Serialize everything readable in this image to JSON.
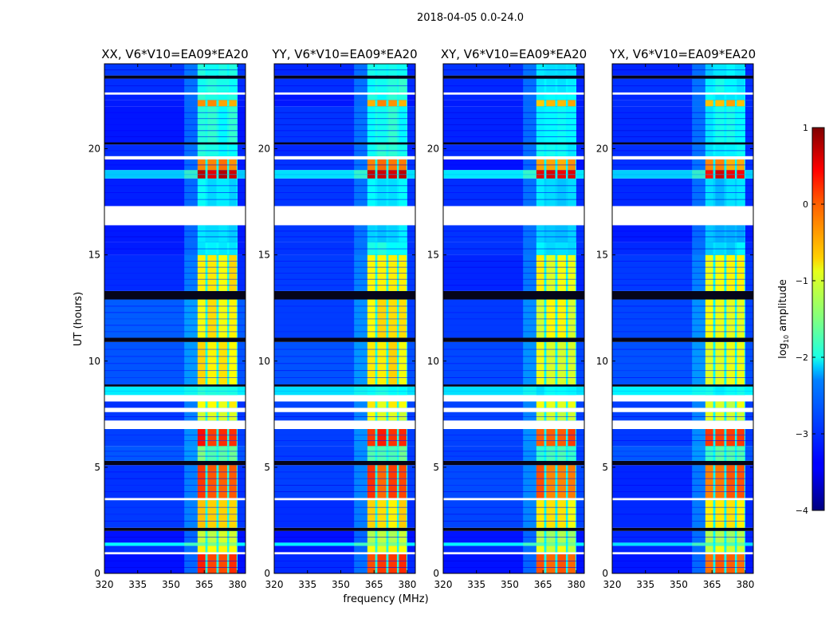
{
  "chart_data": {
    "type": "heatmap",
    "title": "2018-04-05 0.0-24.0",
    "xlabel": "frequency (MHz)",
    "ylabel": "UT (hours)",
    "xlim": [
      320,
      383.6
    ],
    "ylim": [
      0,
      24
    ],
    "xticks": [
      320,
      335,
      350,
      365,
      380
    ],
    "yticks": [
      0,
      5,
      10,
      15,
      20
    ],
    "panels": [
      {
        "title": "XX, V6*V10=EA09*EA20"
      },
      {
        "title": "YY, V6*V10=EA09*EA20"
      },
      {
        "title": "XY, V6*V10=EA09*EA20"
      },
      {
        "title": "YX, V6*V10=EA09*EA20"
      }
    ],
    "colorbar": {
      "label_prefix": "log",
      "label_sub": "10",
      "label_suffix": " amplitude",
      "colormap": "jet",
      "range": [
        -4,
        1
      ],
      "ticks": [
        1,
        0,
        -1,
        -2,
        -3,
        -4
      ]
    },
    "rfi_subbands_mhz": [
      [
        362,
        365.5
      ],
      [
        366.5,
        370.5
      ],
      [
        371.5,
        375.3
      ],
      [
        376.2,
        379.6
      ]
    ],
    "time_segments": [
      {
        "t0": 0.0,
        "t1": 0.9,
        "state": "data",
        "bg": -3.2,
        "rfi": 0.1
      },
      {
        "t0": 0.9,
        "t1": 1.0,
        "state": "flag"
      },
      {
        "t0": 1.0,
        "t1": 1.3,
        "state": "data",
        "bg": -3.2,
        "rfi": -0.9
      },
      {
        "t0": 1.3,
        "t1": 1.45,
        "state": "data",
        "bg": -2.2,
        "rfi": -1.5
      },
      {
        "t0": 1.45,
        "t1": 2.0,
        "state": "data",
        "bg": -3.2,
        "rfi": -1.2
      },
      {
        "t0": 2.0,
        "t1": 2.15,
        "state": "gap"
      },
      {
        "t0": 2.15,
        "t1": 3.45,
        "state": "data",
        "bg": -3.1,
        "rfi": -0.7
      },
      {
        "t0": 3.45,
        "t1": 3.55,
        "state": "flag"
      },
      {
        "t0": 3.55,
        "t1": 5.1,
        "state": "data",
        "bg": -3.1,
        "rfi": 0.0
      },
      {
        "t0": 5.1,
        "t1": 5.3,
        "state": "gap"
      },
      {
        "t0": 5.3,
        "t1": 6.0,
        "state": "data",
        "bg": -3.0,
        "rfi": -1.6
      },
      {
        "t0": 6.0,
        "t1": 6.8,
        "state": "data",
        "bg": -3.0,
        "rfi": 0.2
      },
      {
        "t0": 6.8,
        "t1": 7.2,
        "state": "flag"
      },
      {
        "t0": 7.2,
        "t1": 7.6,
        "state": "data",
        "bg": -3.1,
        "rfi": -1.0
      },
      {
        "t0": 7.6,
        "t1": 7.8,
        "state": "flag"
      },
      {
        "t0": 7.8,
        "t1": 8.1,
        "state": "data",
        "bg": -3.1,
        "rfi": -0.9
      },
      {
        "t0": 8.1,
        "t1": 8.4,
        "state": "flag"
      },
      {
        "t0": 8.4,
        "t1": 8.8,
        "state": "data",
        "bg": -2.2,
        "rfi": -2.0
      },
      {
        "t0": 8.8,
        "t1": 8.9,
        "state": "gap"
      },
      {
        "t0": 8.9,
        "t1": 10.9,
        "state": "data",
        "bg": -3.0,
        "rfi": -0.8
      },
      {
        "t0": 10.9,
        "t1": 11.1,
        "state": "gap"
      },
      {
        "t0": 11.1,
        "t1": 12.9,
        "state": "data",
        "bg": -3.0,
        "rfi": -0.8
      },
      {
        "t0": 12.9,
        "t1": 13.3,
        "state": "gap"
      },
      {
        "t0": 13.3,
        "t1": 15.0,
        "state": "data",
        "bg": -3.1,
        "rfi": -0.8
      },
      {
        "t0": 15.0,
        "t1": 15.6,
        "state": "data",
        "bg": -3.2,
        "rfi": -2.1
      },
      {
        "t0": 15.6,
        "t1": 16.4,
        "state": "data",
        "bg": -3.2,
        "rfi": -2.3
      },
      {
        "t0": 16.4,
        "t1": 17.3,
        "state": "flag"
      },
      {
        "t0": 17.3,
        "t1": 18.6,
        "state": "data",
        "bg": -3.2,
        "rfi": -2.2
      },
      {
        "t0": 18.6,
        "t1": 19.0,
        "state": "data",
        "bg": -2.3,
        "rfi": 0.6
      },
      {
        "t0": 19.0,
        "t1": 19.5,
        "state": "data",
        "bg": -3.2,
        "rfi": -0.2
      },
      {
        "t0": 19.5,
        "t1": 19.65,
        "state": "flag"
      },
      {
        "t0": 19.65,
        "t1": 20.2,
        "state": "data",
        "bg": -3.2,
        "rfi": -2.0
      },
      {
        "t0": 20.2,
        "t1": 20.3,
        "state": "gap"
      },
      {
        "t0": 20.3,
        "t1": 22.0,
        "state": "data",
        "bg": -3.2,
        "rfi": -2.0
      },
      {
        "t0": 22.0,
        "t1": 22.3,
        "state": "data",
        "bg": -3.2,
        "rfi": -0.4
      },
      {
        "t0": 22.3,
        "t1": 22.55,
        "state": "data",
        "bg": -3.2,
        "rfi": -2.0
      },
      {
        "t0": 22.55,
        "t1": 22.65,
        "state": "flag"
      },
      {
        "t0": 22.65,
        "t1": 23.3,
        "state": "data",
        "bg": -3.2,
        "rfi": -2.0
      },
      {
        "t0": 23.3,
        "t1": 23.45,
        "state": "gap"
      },
      {
        "t0": 23.45,
        "t1": 24.0,
        "state": "data",
        "bg": -3.2,
        "rfi": -2.1
      }
    ]
  }
}
